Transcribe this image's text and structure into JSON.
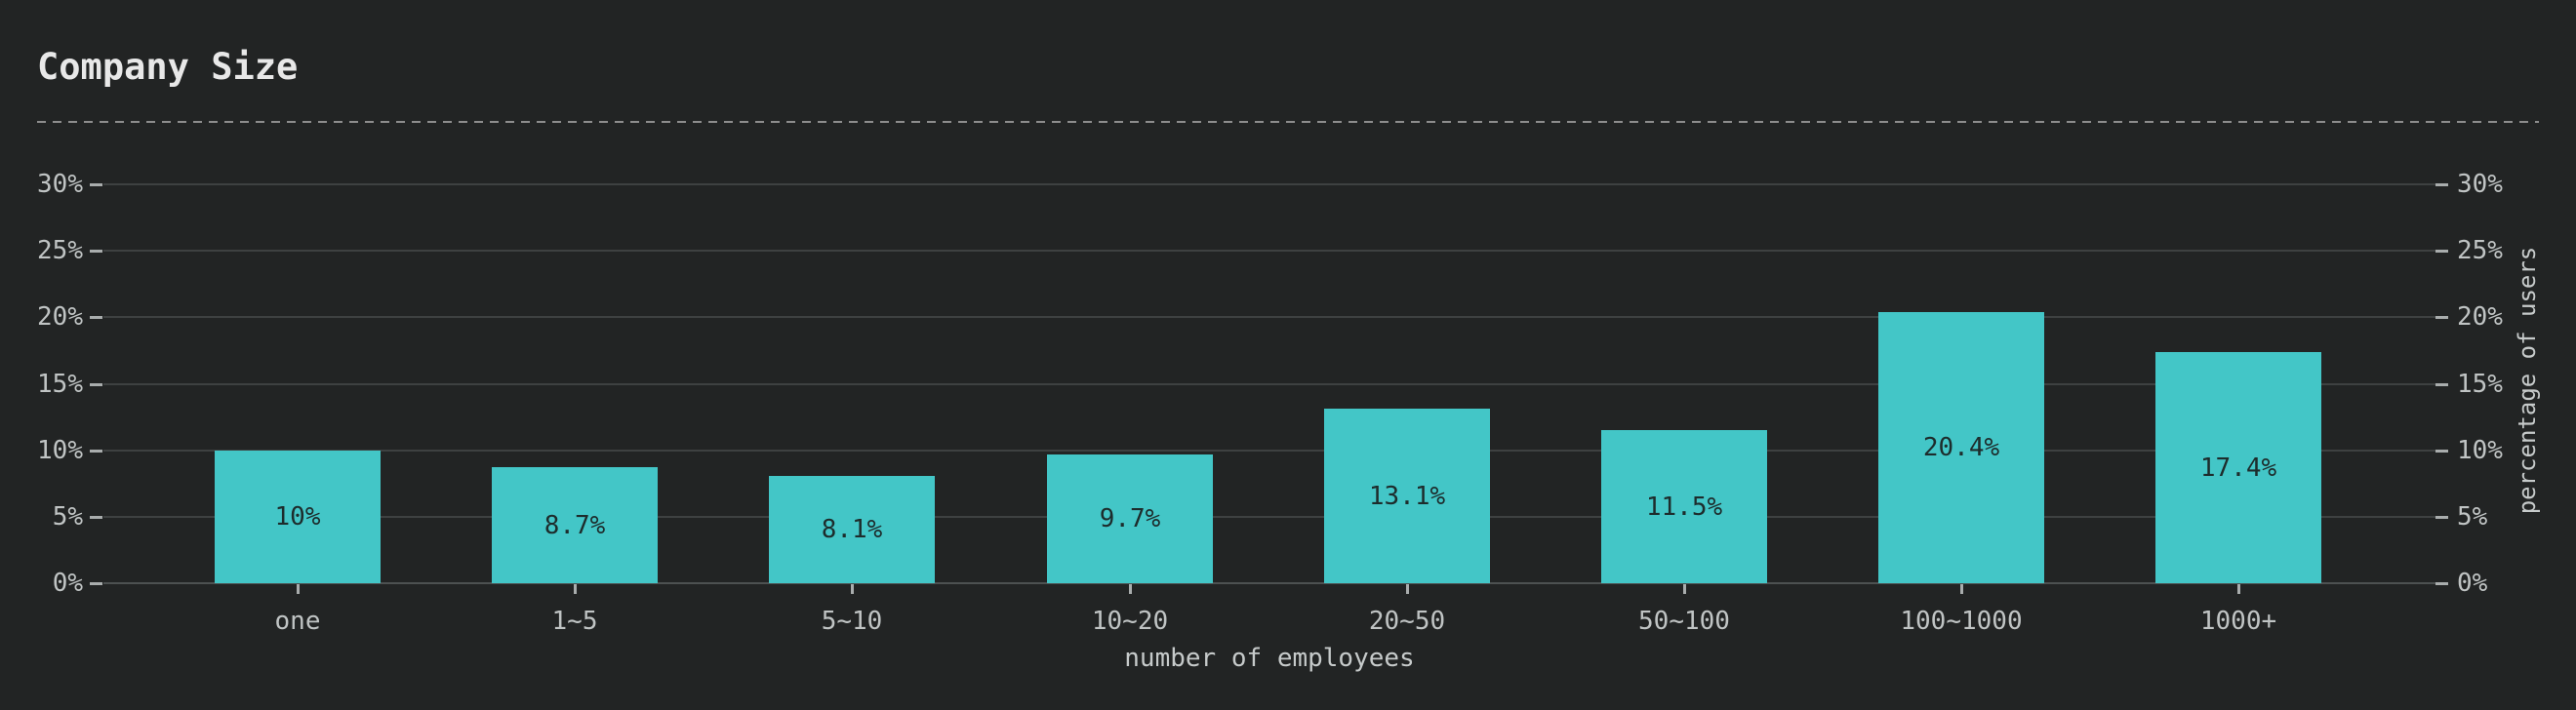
{
  "colors": {
    "background": "#222424",
    "title": "#e8e8e8",
    "rule": "#8d8d8d",
    "grid": "#3e4141",
    "axisline": "#4d5151",
    "tickmark": "#a9adad",
    "ticktext": "#c0c4c4",
    "axistext": "#c6caca",
    "bar": "#43c6c7",
    "barlabel": "#1d2c2c"
  },
  "chart_data": {
    "type": "bar",
    "title": "Company Size",
    "categories": [
      "one",
      "1~5",
      "5~10",
      "10~20",
      "20~50",
      "50~100",
      "100~1000",
      "1000+"
    ],
    "values": [
      10,
      8.7,
      8.1,
      9.7,
      13.1,
      11.5,
      20.4,
      17.4
    ],
    "bar_labels": [
      "10%",
      "8.7%",
      "8.1%",
      "9.7%",
      "13.1%",
      "11.5%",
      "20.4%",
      "17.4%"
    ],
    "xlabel": "number of employees",
    "ylabel": "percentage of users",
    "yticks": [
      "30%",
      "25%",
      "20%",
      "15%",
      "10%",
      "5%",
      "0%"
    ],
    "ylim": [
      0,
      32
    ],
    "grid": true,
    "legend": false,
    "y_axis_sides": [
      "left",
      "right"
    ],
    "title_divider_style": "dashed"
  }
}
